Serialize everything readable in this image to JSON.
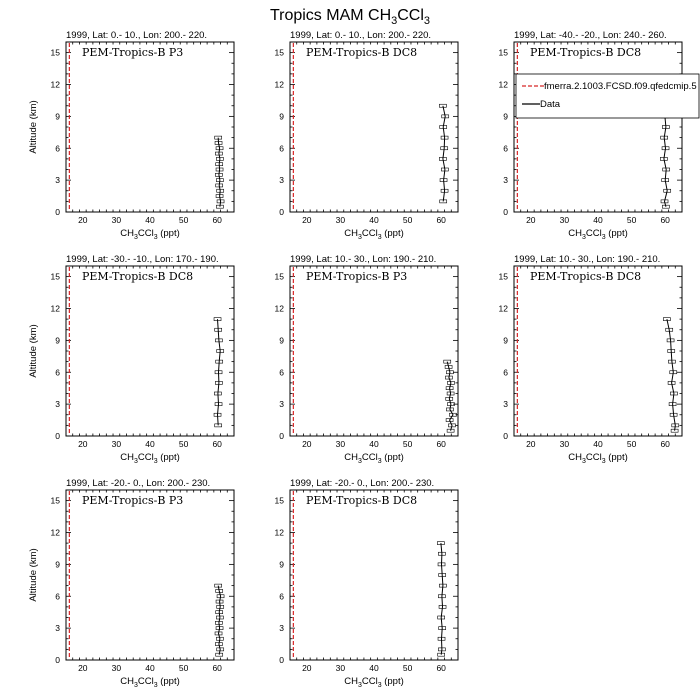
{
  "figure": {
    "title_main": "Tropics MAM CH",
    "title_sub1": "3",
    "title_mid": "CCl",
    "title_sub2": "3",
    "colors": {
      "model": "#d62728",
      "data": "#000000",
      "axis": "#000000"
    }
  },
  "legend": {
    "model_label": "fmerra.2.1003.FCSD.f09.qfedcmip.5",
    "data_label": "Data"
  },
  "chart_data": [
    {
      "type": "line",
      "title": "1999, Lat: 0.- 10., Lon: 200.- 220.",
      "campaign": "PEM-Tropics-B P3",
      "xlabel_main": "CH",
      "xlabel_s1": "3",
      "xlabel_mid": "CCl",
      "xlabel_s2": "3",
      "xlabel_unit": " (ppt)",
      "ylabel": "Altitude (km)",
      "xlim": [
        15,
        65
      ],
      "ylim": [
        0,
        16
      ],
      "xticks": [
        "20",
        "30",
        "40",
        "50",
        "60"
      ],
      "yticks": [
        "0",
        "3",
        "6",
        "9",
        "12",
        "15"
      ],
      "model_x": 16,
      "series": [
        {
          "name": "Data",
          "altitude": [
            0.5,
            1.0,
            1.5,
            2.0,
            2.5,
            3.0,
            3.5,
            4.0,
            4.5,
            5.0,
            5.5,
            6.0,
            6.5,
            7.0
          ],
          "values": [
            60.8,
            61.0,
            60.7,
            60.9,
            60.6,
            60.8,
            60.5,
            60.7,
            60.6,
            60.8,
            60.5,
            60.7,
            60.4,
            60.3
          ]
        }
      ]
    },
    {
      "type": "line",
      "title": "1999, Lat: 0.- 10., Lon: 200.- 220.",
      "campaign": "PEM-Tropics-B DC8",
      "xlabel_main": "CH",
      "xlabel_s1": "3",
      "xlabel_mid": "CCl",
      "xlabel_s2": "3",
      "xlabel_unit": " (ppt)",
      "ylabel": "",
      "xlim": [
        15,
        65
      ],
      "ylim": [
        0,
        16
      ],
      "xticks": [
        "20",
        "30",
        "40",
        "50",
        "60"
      ],
      "yticks": [
        "0",
        "3",
        "6",
        "9",
        "12",
        "15"
      ],
      "model_x": 16,
      "series": [
        {
          "name": "Data",
          "altitude": [
            1.0,
            2.0,
            3.0,
            4.0,
            5.0,
            6.0,
            7.0,
            8.0,
            9.0,
            10.0
          ],
          "values": [
            60.6,
            61.0,
            60.7,
            61.1,
            60.5,
            60.9,
            61.0,
            60.6,
            61.2,
            60.5
          ]
        }
      ]
    },
    {
      "type": "line",
      "title": "1999, Lat: -40.- -20., Lon: 240.- 260.",
      "campaign": "PEM-Tropics-B DC8",
      "xlabel_main": "CH",
      "xlabel_s1": "3",
      "xlabel_mid": "CCl",
      "xlabel_s2": "3",
      "xlabel_unit": " (ppt)",
      "ylabel": "",
      "xlim": [
        15,
        65
      ],
      "ylim": [
        0,
        16
      ],
      "xticks": [
        "20",
        "30",
        "40",
        "50",
        "60"
      ],
      "yticks": [
        "0",
        "3",
        "6",
        "9",
        "12",
        "15"
      ],
      "model_x": 16,
      "show_legend": true,
      "series": [
        {
          "name": "Data",
          "altitude": [
            0.5,
            1.0,
            2.0,
            3.0,
            4.0,
            5.0,
            6.0,
            7.0,
            8.0,
            9.0,
            10.0,
            11.0
          ],
          "values": [
            60.2,
            59.8,
            60.6,
            60.0,
            60.3,
            59.6,
            60.1,
            59.7,
            60.2,
            59.9,
            59.8,
            59.4
          ]
        }
      ]
    },
    {
      "type": "line",
      "title": "1999, Lat: -30.- -10., Lon: 170.- 190.",
      "campaign": "PEM-Tropics-B DC8",
      "xlabel_main": "CH",
      "xlabel_s1": "3",
      "xlabel_mid": "CCl",
      "xlabel_s2": "3",
      "xlabel_unit": " (ppt)",
      "ylabel": "Altitude (km)",
      "xlim": [
        15,
        65
      ],
      "ylim": [
        0,
        16
      ],
      "xticks": [
        "20",
        "30",
        "40",
        "50",
        "60"
      ],
      "yticks": [
        "0",
        "3",
        "6",
        "9",
        "12",
        "15"
      ],
      "model_x": 16,
      "series": [
        {
          "name": "Data",
          "altitude": [
            1.0,
            2.0,
            3.0,
            4.0,
            5.0,
            6.0,
            7.0,
            8.0,
            9.0,
            10.0,
            11.0
          ],
          "values": [
            60.3,
            60.1,
            60.4,
            60.2,
            60.5,
            60.4,
            60.6,
            60.9,
            60.5,
            60.3,
            60.1
          ]
        }
      ]
    },
    {
      "type": "line",
      "title": "1999, Lat: 10.- 30., Lon: 190.- 210.",
      "campaign": "PEM-Tropics-B P3",
      "xlabel_main": "CH",
      "xlabel_s1": "3",
      "xlabel_mid": "CCl",
      "xlabel_s2": "3",
      "xlabel_unit": " (ppt)",
      "ylabel": "",
      "xlim": [
        15,
        65
      ],
      "ylim": [
        0,
        16
      ],
      "xticks": [
        "20",
        "30",
        "40",
        "50",
        "60"
      ],
      "yticks": [
        "0",
        "3",
        "6",
        "9",
        "12",
        "15"
      ],
      "model_x": 16,
      "series": [
        {
          "name": "Data",
          "altitude": [
            0.5,
            1.0,
            1.5,
            2.0,
            2.5,
            3.0,
            3.5,
            4.0,
            4.5,
            5.0,
            5.5,
            6.0,
            6.5,
            7.0
          ],
          "values": [
            62.8,
            63.2,
            62.5,
            63.5,
            62.6,
            62.9,
            62.4,
            62.8,
            62.5,
            62.9,
            62.3,
            62.6,
            62.2,
            61.8
          ]
        }
      ]
    },
    {
      "type": "line",
      "title": "1999, Lat: 10.- 30., Lon: 190.- 210.",
      "campaign": "PEM-Tropics-B DC8",
      "xlabel_main": "CH",
      "xlabel_s1": "3",
      "xlabel_mid": "CCl",
      "xlabel_s2": "3",
      "xlabel_unit": " (ppt)",
      "ylabel": "",
      "xlim": [
        15,
        65
      ],
      "ylim": [
        0,
        16
      ],
      "xticks": [
        "20",
        "30",
        "40",
        "50",
        "60"
      ],
      "yticks": [
        "0",
        "3",
        "6",
        "9",
        "12",
        "15"
      ],
      "model_x": 16,
      "series": [
        {
          "name": "Data",
          "altitude": [
            0.5,
            1.0,
            2.0,
            3.0,
            4.0,
            5.0,
            6.0,
            7.0,
            8.0,
            9.0,
            10.0,
            11.0
          ],
          "values": [
            62.8,
            63.0,
            62.5,
            62.2,
            62.6,
            61.9,
            62.4,
            62.0,
            61.8,
            61.6,
            61.2,
            60.5
          ]
        }
      ]
    },
    {
      "type": "line",
      "title": "1999, Lat: -20.- 0., Lon: 200.- 230.",
      "campaign": "PEM-Tropics-B P3",
      "xlabel_main": "CH",
      "xlabel_s1": "3",
      "xlabel_mid": "CCl",
      "xlabel_s2": "3",
      "xlabel_unit": " (ppt)",
      "ylabel": "Altitude (km)",
      "xlim": [
        15,
        65
      ],
      "ylim": [
        0,
        16
      ],
      "xticks": [
        "20",
        "30",
        "40",
        "50",
        "60"
      ],
      "yticks": [
        "0",
        "3",
        "6",
        "9",
        "12",
        "15"
      ],
      "model_x": 16,
      "series": [
        {
          "name": "Data",
          "altitude": [
            0.5,
            1.0,
            1.5,
            2.0,
            2.5,
            3.0,
            3.5,
            4.0,
            4.5,
            5.0,
            5.5,
            6.0,
            6.5,
            7.0
          ],
          "values": [
            60.6,
            60.9,
            60.5,
            60.8,
            60.4,
            60.7,
            60.5,
            60.8,
            60.6,
            60.9,
            60.7,
            61.0,
            60.6,
            60.3
          ]
        }
      ]
    },
    {
      "type": "line",
      "title": "1999, Lat: -20.- 0., Lon: 200.- 230.",
      "campaign": "PEM-Tropics-B DC8",
      "xlabel_main": "CH",
      "xlabel_s1": "3",
      "xlabel_mid": "CCl",
      "xlabel_s2": "3",
      "xlabel_unit": " (ppt)",
      "ylabel": "",
      "xlim": [
        15,
        65
      ],
      "ylim": [
        0,
        16
      ],
      "xticks": [
        "20",
        "30",
        "40",
        "50",
        "60"
      ],
      "yticks": [
        "0",
        "3",
        "6",
        "9",
        "12",
        "15"
      ],
      "model_x": 16,
      "series": [
        {
          "name": "Data",
          "altitude": [
            0.5,
            1.0,
            2.0,
            3.0,
            4.0,
            5.0,
            6.0,
            7.0,
            8.0,
            9.0,
            10.0,
            11.0
          ],
          "values": [
            60.0,
            60.2,
            60.1,
            60.3,
            60.0,
            60.4,
            60.2,
            60.5,
            60.3,
            60.1,
            60.2,
            59.9
          ]
        }
      ]
    }
  ]
}
